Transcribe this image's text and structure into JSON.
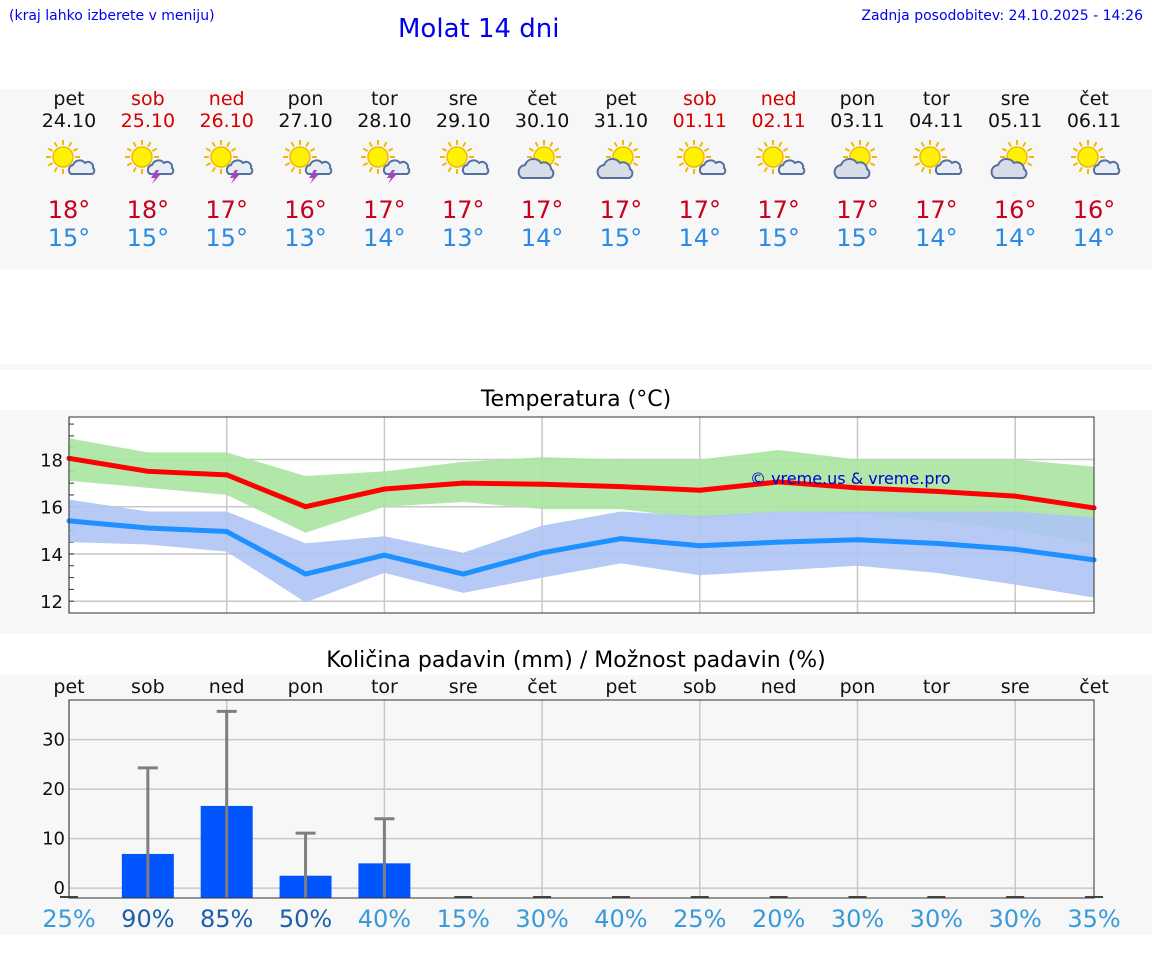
{
  "header": {
    "hint": "(kraj lahko izberete v meniju)",
    "title": "Molat 14 dni",
    "updated": "Zadnja posodobitev: 24.10.2025 - 14:26"
  },
  "days": [
    {
      "name": "pet",
      "date": "24.10",
      "weekend": false,
      "icon": "sun-cloud-icon",
      "max": "18°",
      "min": "15°"
    },
    {
      "name": "sob",
      "date": "25.10",
      "weekend": true,
      "icon": "sun-thunderstorm-icon",
      "max": "18°",
      "min": "15°"
    },
    {
      "name": "ned",
      "date": "26.10",
      "weekend": true,
      "icon": "sun-thunderstorm-icon",
      "max": "17°",
      "min": "15°"
    },
    {
      "name": "pon",
      "date": "27.10",
      "weekend": false,
      "icon": "sun-thunderstorm-icon",
      "max": "16°",
      "min": "13°"
    },
    {
      "name": "tor",
      "date": "28.10",
      "weekend": false,
      "icon": "sun-thunderstorm-icon",
      "max": "17°",
      "min": "14°"
    },
    {
      "name": "sre",
      "date": "29.10",
      "weekend": false,
      "icon": "sun-cloud-icon",
      "max": "17°",
      "min": "13°"
    },
    {
      "name": "čet",
      "date": "30.10",
      "weekend": false,
      "icon": "partly-cloudy-icon",
      "max": "17°",
      "min": "14°"
    },
    {
      "name": "pet",
      "date": "31.10",
      "weekend": false,
      "icon": "partly-cloudy-icon",
      "max": "17°",
      "min": "15°"
    },
    {
      "name": "sob",
      "date": "01.11",
      "weekend": true,
      "icon": "sun-cloud-icon",
      "max": "17°",
      "min": "14°"
    },
    {
      "name": "ned",
      "date": "02.11",
      "weekend": true,
      "icon": "sun-cloud-icon",
      "max": "17°",
      "min": "15°"
    },
    {
      "name": "pon",
      "date": "03.11",
      "weekend": false,
      "icon": "partly-cloudy-icon",
      "max": "17°",
      "min": "15°"
    },
    {
      "name": "tor",
      "date": "04.11",
      "weekend": false,
      "icon": "sun-cloud-icon",
      "max": "17°",
      "min": "14°"
    },
    {
      "name": "sre",
      "date": "05.11",
      "weekend": false,
      "icon": "partly-cloudy-icon",
      "max": "16°",
      "min": "14°"
    },
    {
      "name": "čet",
      "date": "06.11",
      "weekend": false,
      "icon": "sun-cloud-icon",
      "max": "16°",
      "min": "14°"
    }
  ],
  "chart_data": [
    {
      "type": "line",
      "title": "Temperatura (°C)",
      "watermark": "© vreme.us & vreme.pro",
      "ylim": [
        11.5,
        19.8
      ],
      "yticks": [
        12,
        14,
        16,
        18
      ],
      "grid": true,
      "x": [
        0,
        1,
        2,
        3,
        4,
        5,
        6,
        7,
        8,
        9,
        10,
        11,
        12,
        13
      ],
      "series": [
        {
          "name": "max",
          "color": "#ff0000",
          "values": [
            18.05,
            17.5,
            17.35,
            16.0,
            16.75,
            17.0,
            16.95,
            16.85,
            16.7,
            17.05,
            16.8,
            16.65,
            16.45,
            15.95
          ],
          "band_low": [
            17.1,
            16.8,
            16.5,
            14.9,
            16.0,
            16.2,
            15.9,
            15.9,
            15.5,
            15.8,
            15.7,
            15.4,
            15.0,
            14.4
          ],
          "band_high": [
            18.9,
            18.3,
            18.3,
            17.3,
            17.5,
            17.9,
            18.1,
            18.0,
            18.0,
            18.4,
            18.0,
            18.0,
            18.0,
            17.7
          ],
          "band_color": "#a8e6a1"
        },
        {
          "name": "min",
          "color": "#1e90ff",
          "values": [
            15.4,
            15.1,
            14.95,
            13.15,
            13.95,
            13.15,
            14.05,
            14.65,
            14.35,
            14.5,
            14.6,
            14.45,
            14.2,
            13.75
          ],
          "band_low": [
            14.5,
            14.4,
            14.1,
            11.95,
            13.2,
            12.35,
            13.0,
            13.6,
            13.1,
            13.3,
            13.5,
            13.2,
            12.7,
            12.15
          ],
          "band_high": [
            16.3,
            15.8,
            15.8,
            14.45,
            14.75,
            14.05,
            15.2,
            15.8,
            15.6,
            15.8,
            15.8,
            15.8,
            15.8,
            15.55
          ],
          "band_color": "#aec4f4"
        }
      ]
    },
    {
      "type": "bar",
      "title": "Količina padavin (mm) / Možnost padavin (%)",
      "categories": [
        "pet",
        "sob",
        "ned",
        "pon",
        "tor",
        "sre",
        "čet",
        "pet",
        "sob",
        "ned",
        "pon",
        "tor",
        "sre",
        "čet"
      ],
      "ylim": [
        -2,
        38
      ],
      "yticks": [
        0,
        10,
        20,
        30
      ],
      "grid": true,
      "bar_color": "#0055ff",
      "values": [
        0,
        6.9,
        16.6,
        2.5,
        5.0,
        0,
        0,
        0,
        0,
        0,
        0,
        0,
        0,
        0
      ],
      "error_high": [
        0,
        24.3,
        35.7,
        11.1,
        14.0,
        0,
        0,
        0,
        0,
        0,
        0,
        0,
        0,
        0
      ],
      "probability": [
        "25%",
        "90%",
        "85%",
        "50%",
        "40%",
        "15%",
        "30%",
        "40%",
        "25%",
        "20%",
        "30%",
        "30%",
        "30%",
        "35%"
      ],
      "probability_values": [
        25,
        90,
        85,
        50,
        40,
        15,
        30,
        40,
        25,
        20,
        30,
        30,
        30,
        35
      ]
    }
  ]
}
